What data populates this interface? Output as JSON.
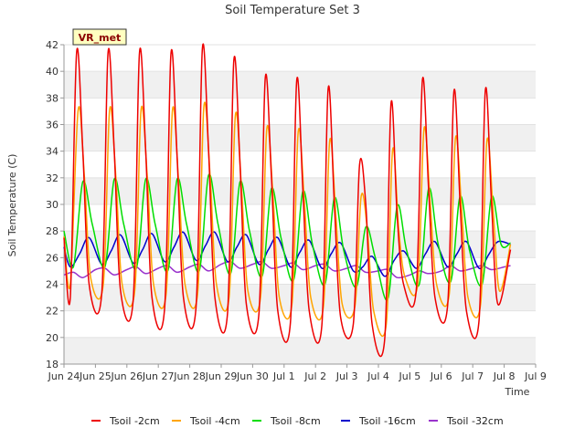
{
  "chart_data": {
    "type": "line",
    "title": "Soil Temperature Set 3",
    "xlabel": "Time",
    "ylabel": "Soil Temperature (C)",
    "site_tag": "VR_met",
    "ylim": [
      18,
      42
    ],
    "yticks": [
      18,
      20,
      22,
      24,
      26,
      28,
      30,
      32,
      34,
      36,
      38,
      40,
      42
    ],
    "xlim": [
      0,
      15
    ],
    "xticks": [
      {
        "v": 0,
        "label": "Jun 24"
      },
      {
        "v": 1,
        "label": "Jun 25"
      },
      {
        "v": 2,
        "label": "Jun 26"
      },
      {
        "v": 3,
        "label": "Jun 27"
      },
      {
        "v": 4,
        "label": "Jun 28"
      },
      {
        "v": 5,
        "label": "Jun 29"
      },
      {
        "v": 6,
        "label": "Jun 30"
      },
      {
        "v": 7,
        "label": "Jul 1"
      },
      {
        "v": 8,
        "label": "Jul 2"
      },
      {
        "v": 9,
        "label": "Jul 3"
      },
      {
        "v": 10,
        "label": "Jul 4"
      },
      {
        "v": 11,
        "label": "Jul 5"
      },
      {
        "v": 12,
        "label": "Jul 6"
      },
      {
        "v": 13,
        "label": "Jul 7"
      },
      {
        "v": 14,
        "label": "Jul 8"
      },
      {
        "v": 15,
        "label": "Jul 9"
      }
    ],
    "x_unit": "days since Jun 24",
    "grid": "horizontal bands",
    "legend_position": "bottom",
    "series": [
      {
        "name": "Tsoil -2cm",
        "color": "#ee0000",
        "x": [
          0.0,
          0.2,
          0.4,
          0.6,
          0.8,
          1.2,
          1.4,
          1.6,
          1.8,
          2.2,
          2.4,
          2.6,
          2.8,
          3.2,
          3.4,
          3.6,
          3.8,
          4.2,
          4.4,
          4.6,
          4.8,
          5.2,
          5.4,
          5.6,
          5.8,
          6.2,
          6.4,
          6.6,
          6.8,
          7.2,
          7.4,
          7.6,
          7.8,
          8.2,
          8.4,
          8.6,
          8.8,
          9.2,
          9.4,
          9.6,
          9.8,
          10.2,
          10.4,
          10.6,
          10.8,
          11.2,
          11.4,
          11.6,
          11.8,
          12.2,
          12.4,
          12.6,
          12.8,
          13.2,
          13.4,
          13.6,
          13.8,
          14.2
        ],
        "y": [
          27.5,
          23.0,
          41.4,
          34.0,
          24.0,
          23.3,
          41.4,
          34.0,
          23.5,
          22.8,
          41.4,
          34.0,
          23.0,
          22.2,
          41.3,
          33.5,
          23.0,
          22.3,
          41.7,
          34.0,
          23.0,
          21.8,
          40.8,
          33.0,
          22.5,
          21.8,
          39.5,
          32.0,
          22.0,
          21.1,
          39.3,
          31.0,
          22.0,
          20.9,
          38.7,
          30.0,
          21.5,
          21.0,
          33.0,
          30.0,
          21.0,
          19.9,
          37.6,
          29.0,
          24.0,
          23.5,
          39.4,
          31.0,
          23.0,
          22.4,
          38.5,
          30.0,
          22.0,
          21.3,
          38.6,
          30.0,
          22.5,
          26.6
        ]
      },
      {
        "name": "Tsoil -4cm",
        "color": "#ffa500",
        "x": [
          0.0,
          0.2,
          0.45,
          0.65,
          0.85,
          1.25,
          1.45,
          1.65,
          1.85,
          2.25,
          2.45,
          2.65,
          2.85,
          3.25,
          3.45,
          3.65,
          3.85,
          4.25,
          4.45,
          4.65,
          4.85,
          5.25,
          5.45,
          5.65,
          5.85,
          6.25,
          6.45,
          6.65,
          6.85,
          7.25,
          7.45,
          7.65,
          7.85,
          8.25,
          8.45,
          8.65,
          8.85,
          9.25,
          9.45,
          9.65,
          9.85,
          10.25,
          10.45,
          10.65,
          10.85,
          11.25,
          11.45,
          11.65,
          11.85,
          12.25,
          12.45,
          12.65,
          12.85,
          13.25,
          13.45,
          13.65,
          13.85,
          14.2
        ],
        "y": [
          27.6,
          24.0,
          37.1,
          32.0,
          24.5,
          24.0,
          37.1,
          32.0,
          24.0,
          23.5,
          37.1,
          32.0,
          24.0,
          23.3,
          37.1,
          31.5,
          24.0,
          23.3,
          37.4,
          32.0,
          24.0,
          23.0,
          36.7,
          31.0,
          23.5,
          23.0,
          35.7,
          30.5,
          23.0,
          22.5,
          35.5,
          30.0,
          23.0,
          22.3,
          34.8,
          29.0,
          22.5,
          22.3,
          30.6,
          28.0,
          22.0,
          21.0,
          34.1,
          28.0,
          24.5,
          24.0,
          35.7,
          30.0,
          24.0,
          23.2,
          35.0,
          29.5,
          23.0,
          22.5,
          34.8,
          29.5,
          23.5,
          27.0
        ]
      },
      {
        "name": "Tsoil -8cm",
        "color": "#00dd00",
        "x": [
          0.0,
          0.3,
          0.6,
          0.9,
          1.3,
          1.6,
          1.9,
          2.3,
          2.6,
          2.9,
          3.3,
          3.6,
          3.9,
          4.3,
          4.6,
          4.9,
          5.3,
          5.6,
          5.9,
          6.3,
          6.6,
          6.9,
          7.3,
          7.6,
          7.9,
          8.3,
          8.6,
          8.9,
          9.3,
          9.6,
          9.9,
          10.3,
          10.6,
          10.9,
          11.3,
          11.6,
          11.9,
          12.3,
          12.6,
          12.9,
          13.3,
          13.6,
          13.9,
          14.2
        ],
        "y": [
          28.0,
          25.3,
          31.7,
          28.5,
          25.3,
          31.9,
          28.5,
          25.2,
          31.9,
          28.5,
          25.0,
          31.9,
          28.5,
          25.0,
          32.2,
          28.5,
          24.8,
          31.7,
          28.0,
          24.6,
          31.2,
          27.5,
          24.3,
          31.0,
          27.0,
          24.0,
          30.5,
          26.5,
          23.8,
          28.3,
          26.0,
          22.9,
          29.9,
          26.5,
          24.0,
          31.2,
          27.0,
          24.2,
          30.6,
          26.5,
          24.0,
          30.6,
          27.0,
          27.1
        ]
      },
      {
        "name": "Tsoil -16cm",
        "color": "#0000cc",
        "x": [
          0.0,
          0.2,
          0.5,
          0.8,
          1.2,
          1.5,
          1.8,
          2.2,
          2.5,
          2.8,
          3.2,
          3.5,
          3.8,
          4.2,
          4.5,
          4.8,
          5.2,
          5.5,
          5.8,
          6.2,
          6.5,
          6.8,
          7.2,
          7.5,
          7.8,
          8.2,
          8.5,
          8.8,
          9.2,
          9.5,
          9.8,
          10.2,
          10.5,
          10.8,
          11.2,
          11.5,
          11.8,
          12.2,
          12.5,
          12.8,
          13.2,
          13.5,
          13.8,
          14.2
        ],
        "y": [
          26.8,
          25.3,
          26.3,
          27.5,
          25.5,
          26.5,
          27.7,
          25.6,
          26.6,
          27.8,
          25.7,
          26.8,
          27.9,
          25.8,
          26.9,
          27.9,
          25.7,
          26.8,
          27.7,
          25.5,
          26.6,
          27.5,
          25.3,
          26.4,
          27.3,
          25.2,
          26.3,
          27.1,
          25.0,
          25.3,
          26.1,
          24.6,
          25.8,
          26.5,
          25.2,
          26.3,
          27.2,
          25.3,
          26.3,
          27.2,
          25.2,
          26.2,
          27.2,
          27.0
        ]
      },
      {
        "name": "Tsoil -32cm",
        "color": "#9933cc",
        "x": [
          0.0,
          0.3,
          0.6,
          1.0,
          1.3,
          1.6,
          2.0,
          2.3,
          2.6,
          3.0,
          3.3,
          3.6,
          4.0,
          4.3,
          4.6,
          5.0,
          5.3,
          5.6,
          6.0,
          6.3,
          6.6,
          7.0,
          7.3,
          7.6,
          8.0,
          8.3,
          8.6,
          9.0,
          9.3,
          9.6,
          10.0,
          10.3,
          10.6,
          11.0,
          11.3,
          11.6,
          12.0,
          12.3,
          12.6,
          13.0,
          13.3,
          13.6,
          14.0,
          14.2
        ],
        "y": [
          24.7,
          24.9,
          24.5,
          25.1,
          25.2,
          24.7,
          25.1,
          25.3,
          24.8,
          25.2,
          25.4,
          24.9,
          25.3,
          25.5,
          25.0,
          25.5,
          25.7,
          25.2,
          25.5,
          25.7,
          25.2,
          25.4,
          25.6,
          25.1,
          25.4,
          25.5,
          25.0,
          25.2,
          25.4,
          24.9,
          25.0,
          25.1,
          24.5,
          24.7,
          25.0,
          24.8,
          25.0,
          25.4,
          25.0,
          25.2,
          25.4,
          25.1,
          25.3,
          25.4
        ]
      }
    ]
  }
}
